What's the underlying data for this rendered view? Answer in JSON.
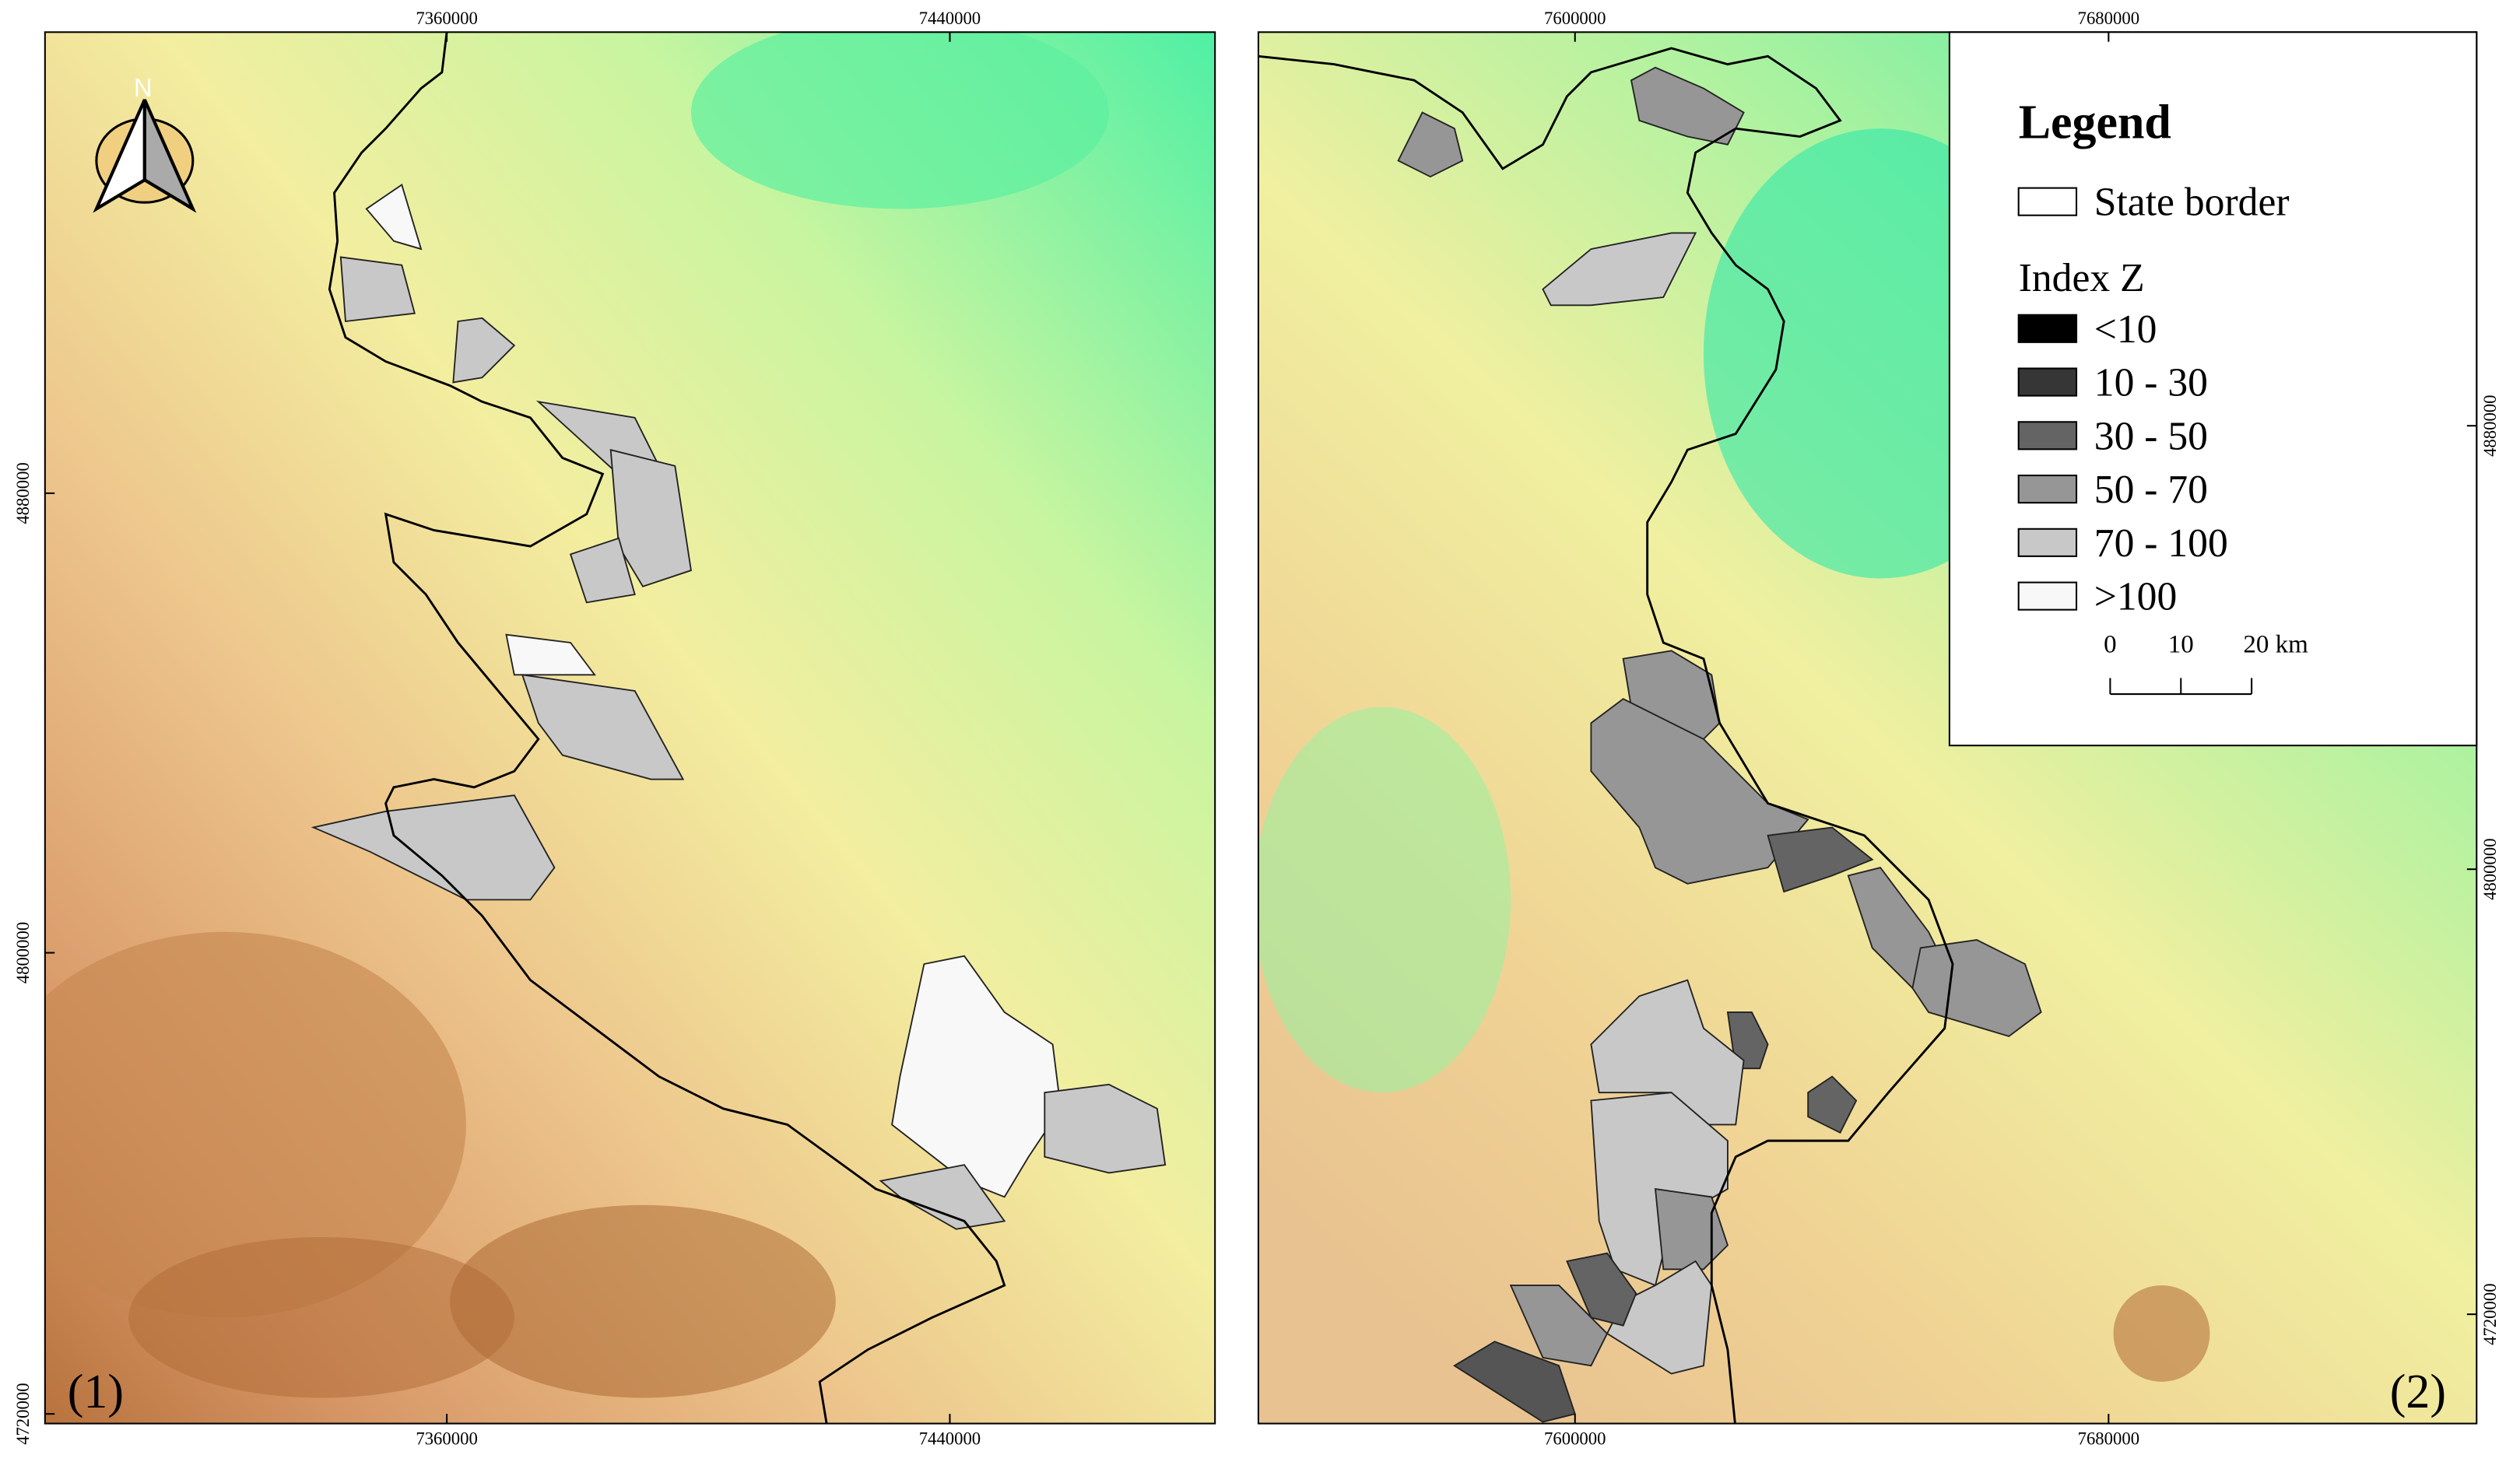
{
  "panels": [
    {
      "label": "(1)",
      "top_ticks": [
        7360000,
        7440000
      ],
      "bottom_ticks": [
        7360000,
        7440000
      ],
      "side_ticks": [
        4880000,
        4800000,
        4720000
      ]
    },
    {
      "label": "(2)",
      "top_ticks": [
        7600000,
        7680000
      ],
      "bottom_ticks": [
        7600000,
        7680000
      ],
      "side_ticks": [
        4880000,
        4800000,
        4720000
      ]
    }
  ],
  "north_arrow": "N",
  "legend": {
    "title": "Legend",
    "border_label": "State border",
    "index_title": "Index Z",
    "classes": [
      {
        "label": "<10",
        "color": "#000000"
      },
      {
        "label": "10 - 30",
        "color": "#363636"
      },
      {
        "label": "30 - 50",
        "color": "#646464"
      },
      {
        "label": "50 - 70",
        "color": "#969696"
      },
      {
        "label": "70 - 100",
        "color": "#c8c8c8"
      },
      {
        "label": ">100",
        "color": "#f8f8f8"
      }
    ],
    "scale_labels": [
      "0",
      "10",
      "20 km"
    ]
  }
}
